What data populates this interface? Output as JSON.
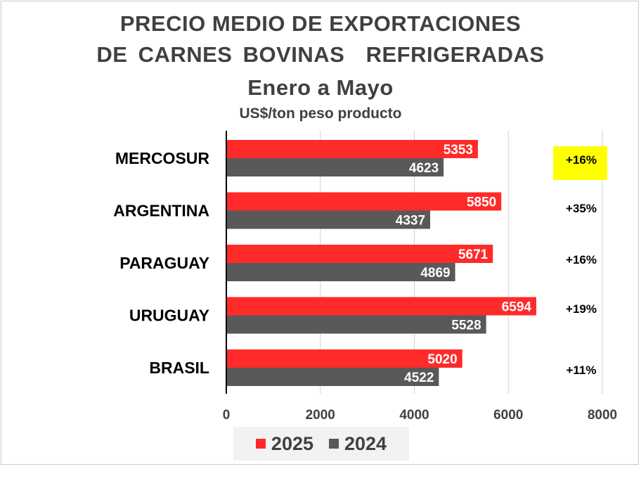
{
  "chart_data": {
    "type": "bar",
    "orientation": "horizontal",
    "title": "PRECIO MEDIO DE EXPORTACIONES",
    "title_line2": "DE CARNES BOVINAS  REFRIGERADAS",
    "title_line3": "Enero a Mayo",
    "subtitle": "US$/ton peso producto",
    "categories": [
      "MERCOSUR",
      "ARGENTINA",
      "PARAGUAY",
      "URUGUAY",
      "BRASIL"
    ],
    "series": [
      {
        "name": "2025",
        "color": "#ff2a2a",
        "values": [
          5353,
          5850,
          5671,
          6594,
          5020
        ]
      },
      {
        "name": "2024",
        "color": "#595959",
        "values": [
          4623,
          4337,
          4869,
          5528,
          4522
        ]
      }
    ],
    "annotations": [
      "+16%",
      "+35%",
      "+16%",
      "+19%",
      "+11%"
    ],
    "highlight_annotation": {
      "index": 0,
      "color": "#ffff00"
    },
    "xlim": [
      0,
      8000
    ],
    "xticks": [
      0,
      2000,
      4000,
      6000,
      8000
    ],
    "grid": "vertical",
    "legend": "bottom"
  }
}
